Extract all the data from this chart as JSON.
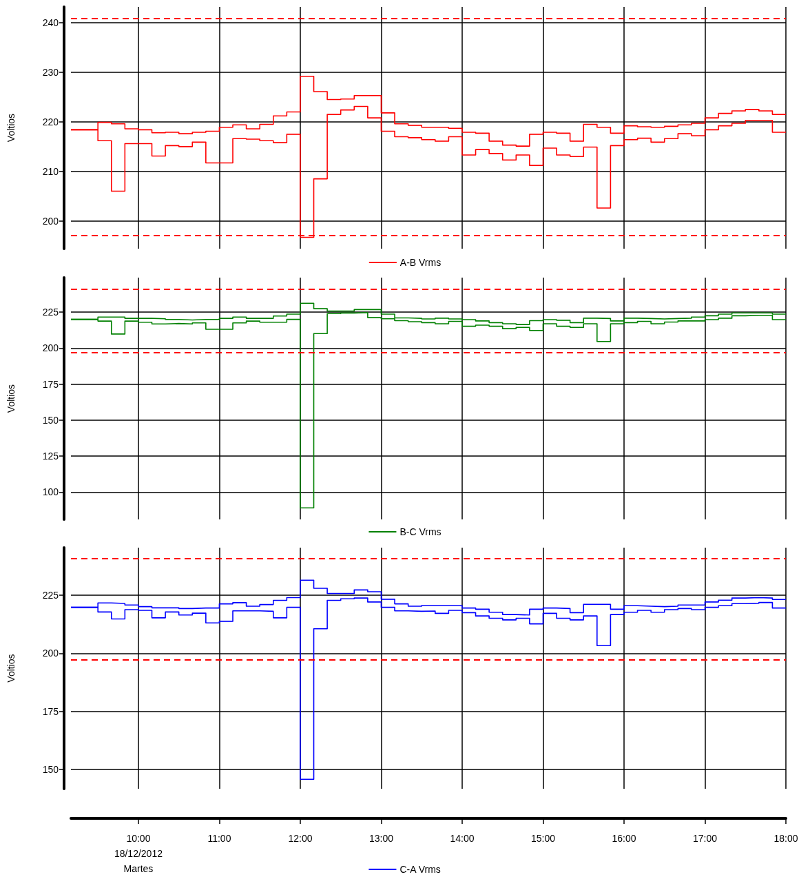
{
  "chart_data": [
    {
      "type": "step",
      "ylabel": "Voltios",
      "xlim": [
        9.1667,
        18
      ],
      "ylim": [
        194.4,
        243.2
      ],
      "yticks": [
        200,
        210,
        220,
        230,
        240
      ],
      "tick_labels": "y",
      "grid": true,
      "legend": "bottom",
      "xticks": [
        {
          "value": 10,
          "label": null
        },
        {
          "value": 11,
          "label": null
        },
        {
          "value": 12,
          "label": null
        },
        {
          "value": 13,
          "label": null
        },
        {
          "value": 14,
          "label": null
        },
        {
          "value": 15,
          "label": null
        },
        {
          "value": 16,
          "label": null
        },
        {
          "value": 17,
          "label": null
        },
        {
          "value": 18,
          "label": null
        }
      ],
      "x": [
        9.1667,
        9.3333,
        9.5,
        9.6667,
        9.8333,
        10,
        10.1667,
        10.3333,
        10.5,
        10.6667,
        10.8333,
        11,
        11.1667,
        11.3333,
        11.5,
        11.6667,
        11.8333,
        12,
        12.1667,
        12.3333,
        12.5,
        12.6667,
        12.8333,
        13,
        13.1667,
        13.3333,
        13.5,
        13.6667,
        13.8333,
        14,
        14.1667,
        14.3333,
        14.5,
        14.6667,
        14.8333,
        15,
        15.1667,
        15.3333,
        15.5,
        15.6667,
        15.8333,
        16,
        16.1667,
        16.3333,
        16.5,
        16.6667,
        16.8333,
        17,
        17.1667,
        17.3333,
        17.5,
        17.6667,
        17.8333,
        18
      ],
      "series": [
        {
          "name": "A-B Vrms",
          "color": "#ff0000",
          "values": [
            218.4,
            218.4,
            219.9,
            219.6,
            218.6,
            218.4,
            217.8,
            217.9,
            217.6,
            217.9,
            218.1,
            218.9,
            219.4,
            218.6,
            219.5,
            221.2,
            222.0,
            229.2,
            226.1,
            224.5,
            224.6,
            225.3,
            225.3,
            221.8,
            219.6,
            219.3,
            218.9,
            218.9,
            218.7,
            217.9,
            217.7,
            216.1,
            215.3,
            215.1,
            217.5,
            217.9,
            217.7,
            216.1,
            219.5,
            218.9,
            217.7,
            219.2,
            219.0,
            218.9,
            219.1,
            219.4,
            219.7,
            220.8,
            221.7,
            222.2,
            222.5,
            222.2,
            221.5,
            221.5
          ]
        },
        {
          "color": "#ff0000",
          "values": [
            218.4,
            218.4,
            216.2,
            206.0,
            215.6,
            215.6,
            213.1,
            215.2,
            215.0,
            215.9,
            211.7,
            211.7,
            216.6,
            216.5,
            216.2,
            215.8,
            217.5,
            196.7,
            208.5,
            221.5,
            222.4,
            223.1,
            220.8,
            218.1,
            217.0,
            216.8,
            216.4,
            216.1,
            217.0,
            213.3,
            214.4,
            213.6,
            212.3,
            213.3,
            211.2,
            214.7,
            213.3,
            213.0,
            214.9,
            202.6,
            215.2,
            216.4,
            216.7,
            215.9,
            216.6,
            217.6,
            217.2,
            218.4,
            219.2,
            219.7,
            220.3,
            220.3,
            217.9,
            217.9
          ]
        }
      ],
      "ref_lines": [
        {
          "axis": "y",
          "value": 240.9,
          "color": "#ff0000",
          "line_style": "dashed"
        },
        {
          "axis": "y",
          "value": 197.1,
          "color": "#ff0000",
          "line_style": "dashed"
        }
      ]
    },
    {
      "type": "step",
      "ylabel": "Voltios",
      "xlim": [
        9.1667,
        18
      ],
      "ylim": [
        81,
        249
      ],
      "yticks": [
        100,
        125,
        150,
        175,
        200,
        225
      ],
      "tick_labels": "y",
      "grid": true,
      "legend": "bottom",
      "xticks": [
        {
          "value": 10,
          "label": null
        },
        {
          "value": 11,
          "label": null
        },
        {
          "value": 12,
          "label": null
        },
        {
          "value": 13,
          "label": null
        },
        {
          "value": 14,
          "label": null
        },
        {
          "value": 15,
          "label": null
        },
        {
          "value": 16,
          "label": null
        },
        {
          "value": 17,
          "label": null
        },
        {
          "value": 18,
          "label": null
        }
      ],
      "x": [
        9.1667,
        9.3333,
        9.5,
        9.6667,
        9.8333,
        10,
        10.1667,
        10.3333,
        10.5,
        10.6667,
        10.8333,
        11,
        11.1667,
        11.3333,
        11.5,
        11.6667,
        11.8333,
        12,
        12.1667,
        12.3333,
        12.5,
        12.6667,
        12.8333,
        13,
        13.1667,
        13.3333,
        13.5,
        13.6667,
        13.8333,
        14,
        14.1667,
        14.3333,
        14.5,
        14.6667,
        14.8333,
        15,
        15.1667,
        15.3333,
        15.5,
        15.6667,
        15.8333,
        16,
        16.1667,
        16.3333,
        16.5,
        16.6667,
        16.8333,
        17,
        17.1667,
        17.3333,
        17.5,
        17.6667,
        17.8333,
        18
      ],
      "series": [
        {
          "name": "B-C Vrms",
          "color": "#008000",
          "values": [
            220.0,
            220.0,
            221.6,
            221.6,
            220.7,
            220.7,
            220.4,
            219.9,
            219.6,
            219.9,
            219.9,
            220.7,
            221.6,
            220.7,
            220.7,
            222.3,
            223.6,
            231.2,
            227.4,
            225.8,
            225.8,
            226.8,
            226.8,
            223.6,
            221.0,
            220.7,
            220.3,
            220.8,
            220.3,
            219.8,
            218.9,
            217.7,
            216.9,
            216.4,
            219.1,
            219.8,
            219.4,
            217.7,
            220.8,
            220.6,
            218.9,
            220.8,
            220.6,
            220.3,
            220.6,
            220.8,
            221.6,
            222.5,
            223.6,
            224.5,
            224.5,
            224.5,
            223.6,
            223.6
          ]
        },
        {
          "color": "#008000",
          "values": [
            220.0,
            220.0,
            218.8,
            209.8,
            218.8,
            218.0,
            216.8,
            217.1,
            216.8,
            217.5,
            213.1,
            213.1,
            217.5,
            218.8,
            218.0,
            218.0,
            220.0,
            89.0,
            210.1,
            224.0,
            224.4,
            224.7,
            221.2,
            220.4,
            219.1,
            218.4,
            217.7,
            216.9,
            218.6,
            215.2,
            216.0,
            215.2,
            213.5,
            214.4,
            212.3,
            216.9,
            215.2,
            214.4,
            216.9,
            204.6,
            216.9,
            217.7,
            218.6,
            216.9,
            218.1,
            218.9,
            218.9,
            219.8,
            220.8,
            222.5,
            222.8,
            222.8,
            219.8,
            219.8
          ]
        }
      ],
      "ref_lines": [
        {
          "axis": "y",
          "value": 240.9,
          "color": "#ff0000",
          "line_style": "dashed"
        },
        {
          "axis": "y",
          "value": 197.1,
          "color": "#ff0000",
          "line_style": "dashed"
        }
      ]
    },
    {
      "type": "step",
      "ylabel": "Voltios",
      "xlim": [
        9.1667,
        18
      ],
      "ylim": [
        141.7,
        245.5
      ],
      "yticks": [
        150,
        175,
        200,
        225
      ],
      "grid": true,
      "legend": "bottom",
      "xticks": [
        {
          "value": 10,
          "label": "10:00\n18/12/2012\nMartes"
        },
        {
          "value": 11,
          "label": "11:00"
        },
        {
          "value": 12,
          "label": "12:00"
        },
        {
          "value": 13,
          "label": "13:00"
        },
        {
          "value": 14,
          "label": "14:00"
        },
        {
          "value": 15,
          "label": "15:00"
        },
        {
          "value": 16,
          "label": "16:00"
        },
        {
          "value": 17,
          "label": "17:00"
        },
        {
          "value": 18,
          "label": "18:00"
        }
      ],
      "x": [
        9.1667,
        9.3333,
        9.5,
        9.6667,
        9.8333,
        10,
        10.1667,
        10.3333,
        10.5,
        10.6667,
        10.8333,
        11,
        11.1667,
        11.3333,
        11.5,
        11.6667,
        11.8333,
        12,
        12.1667,
        12.3333,
        12.5,
        12.6667,
        12.8333,
        13,
        13.1667,
        13.3333,
        13.5,
        13.6667,
        13.8333,
        14,
        14.1667,
        14.3333,
        14.5,
        14.6667,
        14.8333,
        15,
        15.1667,
        15.3333,
        15.5,
        15.6667,
        15.8333,
        16,
        16.1667,
        16.3333,
        16.5,
        16.6667,
        16.8333,
        17,
        17.1667,
        17.3333,
        17.5,
        17.6667,
        17.8333,
        18
      ],
      "series": [
        {
          "name": "C-A Vrms",
          "color": "#0000ff",
          "values": [
            219.8,
            219.8,
            221.7,
            221.5,
            220.8,
            220.1,
            219.6,
            219.6,
            219.3,
            219.5,
            219.5,
            221.3,
            221.8,
            220.3,
            221.0,
            222.8,
            224.0,
            231.5,
            228.0,
            225.8,
            225.8,
            227.3,
            226.5,
            223.3,
            221.3,
            220.3,
            220.6,
            220.6,
            220.5,
            219.5,
            219.0,
            217.7,
            216.7,
            216.5,
            219.0,
            219.5,
            219.3,
            217.5,
            221.1,
            221.1,
            219.0,
            220.5,
            220.3,
            220.1,
            220.3,
            220.8,
            220.8,
            222.1,
            222.9,
            223.8,
            224.0,
            223.8,
            223.2,
            223.2
          ]
        },
        {
          "color": "#0000ff",
          "values": [
            219.8,
            219.8,
            217.8,
            214.8,
            218.8,
            218.5,
            215.3,
            217.8,
            216.5,
            217.3,
            213.1,
            213.8,
            218.3,
            218.3,
            218.1,
            215.3,
            219.8,
            145.8,
            210.6,
            222.8,
            223.5,
            223.8,
            222.1,
            219.8,
            218.3,
            218.1,
            218.2,
            217.2,
            218.5,
            217.5,
            216.1,
            215.1,
            214.4,
            215.1,
            212.7,
            217.2,
            215.1,
            214.4,
            216.1,
            203.3,
            216.7,
            217.7,
            218.5,
            217.7,
            218.8,
            219.3,
            218.8,
            219.8,
            220.5,
            221.4,
            221.6,
            221.9,
            219.5,
            219.5
          ]
        }
      ],
      "ref_lines": [
        {
          "axis": "y",
          "value": 240.9,
          "color": "#ff0000",
          "line_style": "dashed"
        },
        {
          "axis": "y",
          "value": 197.1,
          "color": "#ff0000",
          "line_style": "dashed"
        }
      ]
    }
  ]
}
